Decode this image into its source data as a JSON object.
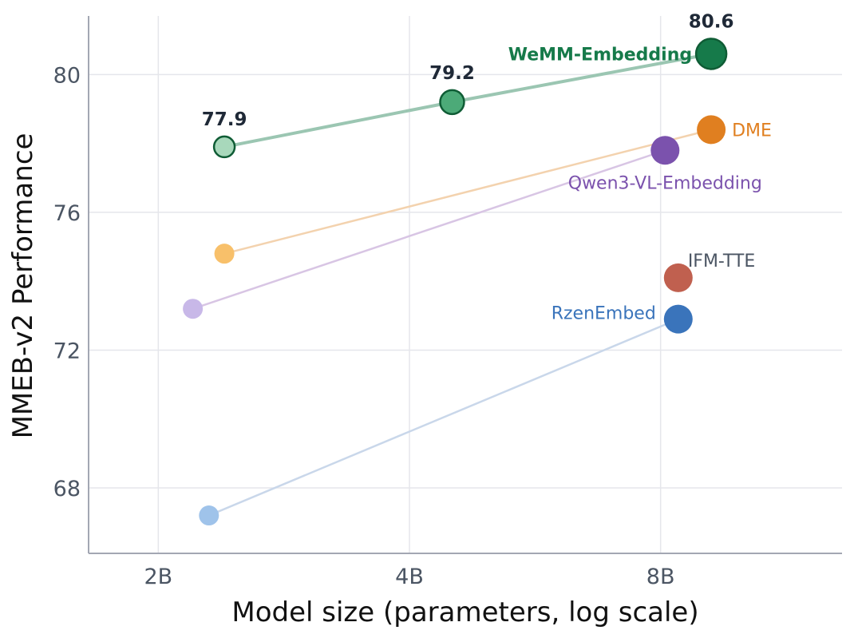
{
  "chart_data": {
    "type": "line",
    "xlabel": "Model size (parameters, log scale)",
    "ylabel": "MMEB-v2 Performance",
    "x_scale": "log2",
    "x_ticks": [
      {
        "value": 2,
        "label": "2B"
      },
      {
        "value": 4,
        "label": "4B"
      },
      {
        "value": 8,
        "label": "8B"
      }
    ],
    "y_ticks": [
      {
        "value": 68,
        "label": "68"
      },
      {
        "value": 72,
        "label": "72"
      },
      {
        "value": 76,
        "label": "76"
      },
      {
        "value": 80,
        "label": "80"
      }
    ],
    "xlim": [
      1.65,
      13.2
    ],
    "ylim": [
      66.1,
      81.7
    ],
    "grid": true,
    "legend": "none",
    "series": [
      {
        "name": "WeMM-Embedding",
        "color": "#167a4a",
        "line_color": "#9bc6b2",
        "fill_colors": [
          "#a8d8bb",
          "#4caa78",
          "#167a4a"
        ],
        "emphasis": true,
        "points": [
          {
            "x": 2.4,
            "y": 77.9,
            "label": "77.9"
          },
          {
            "x": 4.5,
            "y": 79.2,
            "label": "79.2"
          },
          {
            "x": 9.2,
            "y": 80.6,
            "label": "80.6"
          }
        ]
      },
      {
        "name": "DME",
        "color": "#e07f20",
        "line_color": "#f3d2ae",
        "fill_colors": [
          "#f8c06a",
          "#e07f20"
        ],
        "points": [
          {
            "x": 2.4,
            "y": 74.8
          },
          {
            "x": 9.2,
            "y": 78.4
          }
        ]
      },
      {
        "name": "Qwen3-VL-Embedding",
        "color": "#7b52ad",
        "line_color": "#d8c5e4",
        "fill_colors": [
          "#c8b8e8",
          "#7b52ad"
        ],
        "points": [
          {
            "x": 2.2,
            "y": 73.2
          },
          {
            "x": 8.1,
            "y": 77.8
          }
        ]
      },
      {
        "name": "IFM-TTE",
        "color": "#c0604f",
        "line_color": "#c0604f",
        "fill_colors": [
          "#c0604f"
        ],
        "points": [
          {
            "x": 8.4,
            "y": 74.1
          }
        ]
      },
      {
        "name": "RzenEmbed",
        "color": "#3a74bb",
        "line_color": "#c9d7ea",
        "fill_colors": [
          "#9fc3ea",
          "#3a74bb"
        ],
        "points": [
          {
            "x": 2.3,
            "y": 67.2
          },
          {
            "x": 8.4,
            "y": 72.9
          }
        ]
      }
    ]
  }
}
